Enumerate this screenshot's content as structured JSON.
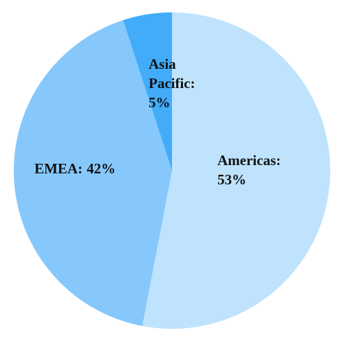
{
  "chart_data": {
    "type": "pie",
    "categories": [
      "Americas:",
      "EMEA:",
      "Asia Pacific:"
    ],
    "values": [
      53,
      42,
      5
    ],
    "value_labels": [
      "53%",
      "42%",
      "5%"
    ],
    "colors": [
      "#bfe3fd",
      "#86c8fb",
      "#42acfa"
    ],
    "start_angle": 0,
    "direction": "clockwise"
  }
}
